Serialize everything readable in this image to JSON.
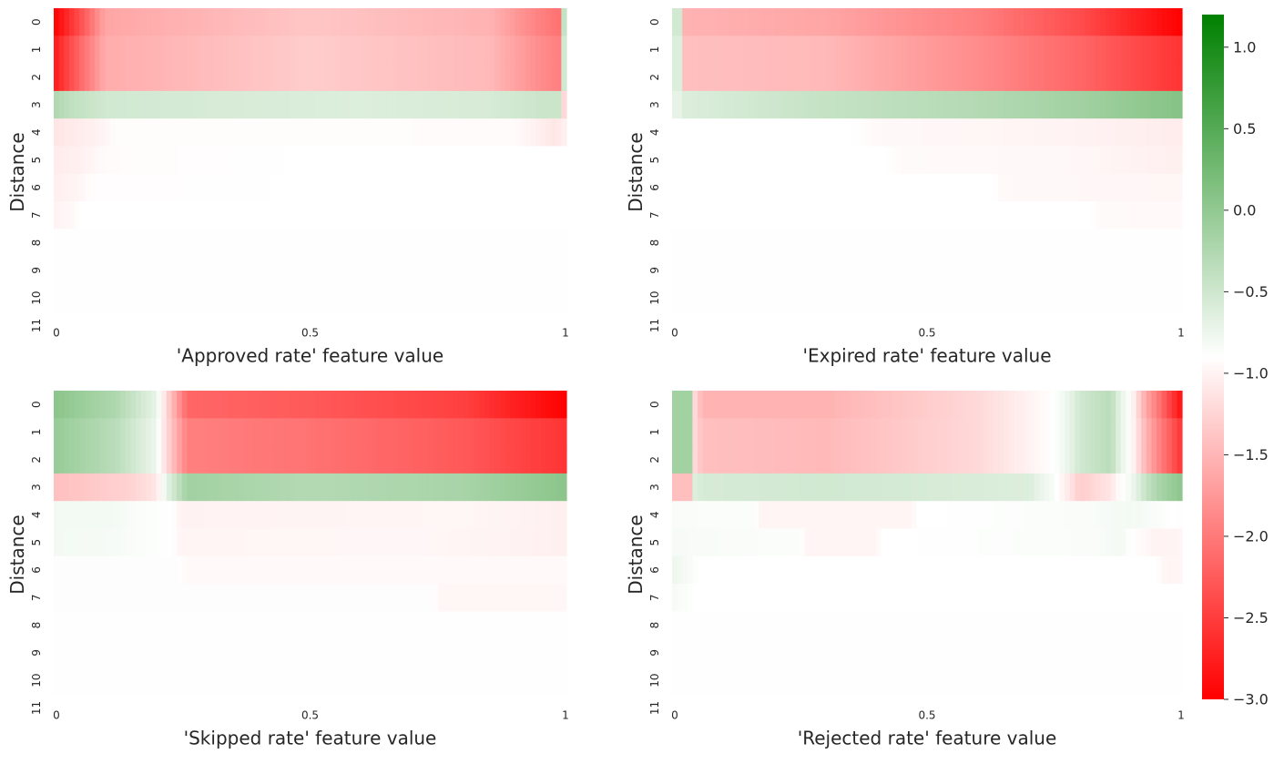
{
  "chart_data": {
    "type": "heatmap",
    "ylabel": "Distance",
    "row_labels": [
      "0",
      "1",
      "2",
      "3",
      "4",
      "5",
      "6",
      "7",
      "8",
      "9",
      "10",
      "11"
    ],
    "x_tick_labels": [
      "0",
      "0.5",
      "1"
    ],
    "colorbar": {
      "vmin": -3.0,
      "vmax": 1.2,
      "ticks": [
        1.0,
        0.5,
        0.0,
        -0.5,
        -1.0,
        -1.5,
        -2.0,
        -2.5,
        -3.0
      ],
      "tick_labels": [
        "1.0",
        "0.5",
        "0.0",
        "−0.5",
        "−1.0",
        "−1.5",
        "−2.0",
        "−2.5",
        "−3.0"
      ],
      "colors": [
        "#ff0000",
        "#ffffff",
        "#008000"
      ]
    },
    "panels": [
      {
        "xlabel": "'Approved rate' feature value",
        "rows": [
          {
            "x": [
              0,
              0.05,
              0.1,
              0.5,
              0.85,
              0.95,
              0.985,
              0.992,
              1
            ],
            "v": [
              -3.0,
              -2.4,
              -1.7,
              -1.45,
              -1.6,
              -2.0,
              -2.1,
              -0.5,
              -0.5
            ]
          },
          {
            "x": [
              0,
              0.05,
              0.1,
              0.5,
              0.85,
              0.95,
              0.985,
              0.992,
              1
            ],
            "v": [
              -2.8,
              -2.2,
              -1.65,
              -1.4,
              -1.55,
              -1.9,
              -2.0,
              -0.6,
              -0.6
            ]
          },
          {
            "x": [
              0,
              0.05,
              0.1,
              0.5,
              0.85,
              0.95,
              0.985,
              0.992,
              1
            ],
            "v": [
              -2.8,
              -2.2,
              -1.65,
              -1.4,
              -1.55,
              -1.9,
              -2.0,
              -0.6,
              -0.6
            ]
          },
          {
            "x": [
              0,
              0.03,
              0.1,
              0.3,
              0.6,
              0.85,
              0.95,
              0.985,
              0.992,
              1
            ],
            "v": [
              -0.3,
              -0.45,
              -0.6,
              -0.65,
              -0.7,
              -0.65,
              -0.55,
              -0.55,
              -1.3,
              -1.3
            ]
          },
          {
            "x": [
              0,
              0.05,
              0.1,
              0.12,
              0.9,
              0.98,
              1
            ],
            "v": [
              -1.2,
              -1.15,
              -1.08,
              -1.02,
              -1.03,
              -1.2,
              -1.1
            ]
          },
          {
            "x": [
              0,
              0.05,
              0.1,
              0.5,
              1
            ],
            "v": [
              -1.15,
              -1.12,
              -1.03,
              -1.0,
              -1.0
            ]
          },
          {
            "x": [
              0,
              0.05,
              0.07,
              0.5,
              1
            ],
            "v": [
              -1.12,
              -1.08,
              -1.02,
              -1.0,
              -1.0
            ]
          },
          {
            "x": [
              0,
              0.04,
              0.05,
              0.5,
              1
            ],
            "v": [
              -1.1,
              -1.05,
              -1.0,
              -1.0,
              -1.0
            ]
          },
          {
            "x": [
              0,
              0.5,
              1
            ],
            "v": [
              -0.98,
              -0.98,
              -0.98
            ]
          },
          {
            "x": [
              0,
              0.5,
              1
            ],
            "v": [
              -0.98,
              -0.98,
              -0.98
            ]
          },
          {
            "x": [
              0,
              0.5,
              1
            ],
            "v": [
              -0.98,
              -0.98,
              -0.98
            ]
          }
        ]
      },
      {
        "xlabel": "'Expired rate' feature value",
        "rows": [
          {
            "x": [
              0,
              0.015,
              0.02,
              0.3,
              0.6,
              0.8,
              1
            ],
            "v": [
              -0.6,
              -0.6,
              -1.6,
              -1.7,
              -2.0,
              -2.4,
              -3.0
            ]
          },
          {
            "x": [
              0,
              0.015,
              0.02,
              0.3,
              0.6,
              0.8,
              1
            ],
            "v": [
              -0.7,
              -0.7,
              -1.5,
              -1.55,
              -1.9,
              -2.2,
              -2.6
            ]
          },
          {
            "x": [
              0,
              0.015,
              0.02,
              0.3,
              0.6,
              0.8,
              1
            ],
            "v": [
              -0.7,
              -0.7,
              -1.5,
              -1.55,
              -1.9,
              -2.2,
              -2.6
            ]
          },
          {
            "x": [
              0,
              0.015,
              0.02,
              0.3,
              0.6,
              0.8,
              1
            ],
            "v": [
              -0.8,
              -0.8,
              -0.7,
              -0.5,
              -0.35,
              -0.2,
              0.05
            ]
          },
          {
            "x": [
              0,
              0.35,
              0.4,
              0.7,
              0.9,
              1
            ],
            "v": [
              -1.0,
              -1.0,
              -1.05,
              -1.08,
              -1.12,
              -1.15
            ]
          },
          {
            "x": [
              0,
              0.42,
              0.45,
              0.8,
              0.9,
              1
            ],
            "v": [
              -1.0,
              -1.0,
              -1.04,
              -1.06,
              -1.1,
              -1.12
            ]
          },
          {
            "x": [
              0,
              0.63,
              0.65,
              1
            ],
            "v": [
              -1.0,
              -1.0,
              -1.05,
              -1.07
            ]
          },
          {
            "x": [
              0,
              0.82,
              0.84,
              1
            ],
            "v": [
              -1.0,
              -1.0,
              -1.04,
              -1.05
            ]
          },
          {
            "x": [
              0,
              0.5,
              1
            ],
            "v": [
              -0.99,
              -0.99,
              -0.99
            ]
          },
          {
            "x": [
              0,
              0.5,
              1
            ],
            "v": [
              -0.99,
              -0.99,
              -0.99
            ]
          },
          {
            "x": [
              0,
              0.5,
              1
            ],
            "v": [
              -0.99,
              -0.99,
              -0.99
            ]
          }
        ]
      },
      {
        "xlabel": "'Skipped rate' feature value",
        "rows": [
          {
            "x": [
              0,
              0.12,
              0.2,
              0.22,
              0.26,
              0.5,
              0.8,
              1
            ],
            "v": [
              0.0,
              -0.3,
              -0.8,
              -1.3,
              -2.2,
              -2.3,
              -2.5,
              -3.0
            ]
          },
          {
            "x": [
              0,
              0.12,
              0.2,
              0.22,
              0.26,
              0.5,
              0.8,
              1
            ],
            "v": [
              -0.1,
              -0.4,
              -0.85,
              -1.3,
              -2.0,
              -2.1,
              -2.3,
              -2.6
            ]
          },
          {
            "x": [
              0,
              0.12,
              0.2,
              0.22,
              0.26,
              0.5,
              0.8,
              1
            ],
            "v": [
              -0.1,
              -0.4,
              -0.85,
              -1.3,
              -2.0,
              -2.1,
              -2.3,
              -2.6
            ]
          },
          {
            "x": [
              0,
              0.15,
              0.2,
              0.22,
              0.26,
              0.5,
              0.8,
              1
            ],
            "v": [
              -1.5,
              -1.35,
              -1.2,
              -0.8,
              -0.2,
              -0.35,
              -0.25,
              0.0
            ]
          },
          {
            "x": [
              0,
              0.12,
              0.15,
              0.23,
              0.25,
              0.8,
              1
            ],
            "v": [
              -0.9,
              -0.9,
              -0.95,
              -1.0,
              -1.1,
              -1.07,
              -1.12
            ]
          },
          {
            "x": [
              0,
              0.1,
              0.15,
              0.23,
              0.25,
              0.7,
              1
            ],
            "v": [
              -0.9,
              -0.92,
              -0.95,
              -1.0,
              -1.08,
              -1.06,
              -1.12
            ]
          },
          {
            "x": [
              0,
              0.24,
              0.26,
              1
            ],
            "v": [
              -0.97,
              -0.97,
              -1.05,
              -1.05
            ]
          },
          {
            "x": [
              0,
              0.74,
              0.75,
              1
            ],
            "v": [
              -0.97,
              -0.97,
              -1.07,
              -1.07
            ]
          },
          {
            "x": [
              0,
              0.5,
              1
            ],
            "v": [
              -0.98,
              -0.98,
              -0.98
            ]
          },
          {
            "x": [
              0,
              0.5,
              1
            ],
            "v": [
              -0.98,
              -0.98,
              -0.98
            ]
          },
          {
            "x": [
              0,
              0.5,
              1
            ],
            "v": [
              -0.98,
              -0.98,
              -0.98
            ]
          }
        ]
      },
      {
        "xlabel": "'Rejected rate' feature value",
        "rows": [
          {
            "x": [
              0,
              0.042,
              0.045,
              0.06,
              0.3,
              0.6,
              0.75,
              0.78,
              0.8,
              0.86,
              0.88,
              0.9,
              0.93,
              0.95,
              1
            ],
            "v": [
              -0.2,
              -0.2,
              -1.3,
              -1.6,
              -1.6,
              -1.3,
              -1.0,
              -0.8,
              -0.6,
              -0.4,
              -0.8,
              -1.0,
              -1.7,
              -2.0,
              -2.9
            ]
          },
          {
            "x": [
              0,
              0.042,
              0.045,
              0.06,
              0.3,
              0.6,
              0.75,
              0.78,
              0.8,
              0.86,
              0.88,
              0.9,
              0.93,
              0.95,
              1
            ],
            "v": [
              -0.2,
              -0.2,
              -1.3,
              -1.5,
              -1.55,
              -1.3,
              -1.0,
              -0.8,
              -0.6,
              -0.4,
              -0.8,
              -1.0,
              -1.6,
              -1.9,
              -2.6
            ]
          },
          {
            "x": [
              0,
              0.042,
              0.045,
              0.06,
              0.3,
              0.6,
              0.75,
              0.78,
              0.8,
              0.86,
              0.88,
              0.9,
              0.93,
              0.95,
              1
            ],
            "v": [
              -0.2,
              -0.2,
              -1.3,
              -1.5,
              -1.55,
              -1.3,
              -1.0,
              -0.8,
              -0.6,
              -0.4,
              -0.8,
              -1.0,
              -1.6,
              -1.9,
              -2.6
            ]
          },
          {
            "x": [
              0,
              0.042,
              0.045,
              0.06,
              0.3,
              0.7,
              0.75,
              0.78,
              0.8,
              0.86,
              0.88,
              0.9,
              0.93,
              0.95,
              1
            ],
            "v": [
              -1.5,
              -1.5,
              -0.7,
              -0.65,
              -0.6,
              -0.7,
              -0.95,
              -1.2,
              -1.4,
              -1.2,
              -1.0,
              -0.9,
              -0.5,
              -0.3,
              0.0
            ]
          },
          {
            "x": [
              0,
              0.16,
              0.17,
              0.47,
              0.48,
              0.82,
              0.9,
              1
            ],
            "v": [
              -0.95,
              -0.97,
              -1.08,
              -1.08,
              -1.0,
              -0.95,
              -0.9,
              -1.02
            ]
          },
          {
            "x": [
              0,
              0.25,
              0.26,
              0.4,
              0.41,
              0.84,
              0.88,
              0.9,
              0.95,
              1
            ],
            "v": [
              -0.93,
              -0.97,
              -1.08,
              -1.08,
              -1.0,
              -0.95,
              -0.9,
              -1.0,
              -1.1,
              -1.08
            ]
          },
          {
            "x": [
              0,
              0.04,
              0.05,
              0.95,
              0.97,
              1
            ],
            "v": [
              -0.85,
              -0.95,
              -1.0,
              -1.0,
              -1.08,
              -1.08
            ]
          },
          {
            "x": [
              0,
              0.03,
              0.05,
              1
            ],
            "v": [
              -0.92,
              -0.97,
              -1.0,
              -1.0
            ]
          },
          {
            "x": [
              0,
              0.5,
              1
            ],
            "v": [
              -0.99,
              -0.99,
              -0.99
            ]
          },
          {
            "x": [
              0,
              0.5,
              1
            ],
            "v": [
              -0.99,
              -0.99,
              -0.99
            ]
          },
          {
            "x": [
              0,
              0.5,
              1
            ],
            "v": [
              -0.99,
              -0.99,
              -0.99
            ]
          }
        ]
      }
    ]
  }
}
